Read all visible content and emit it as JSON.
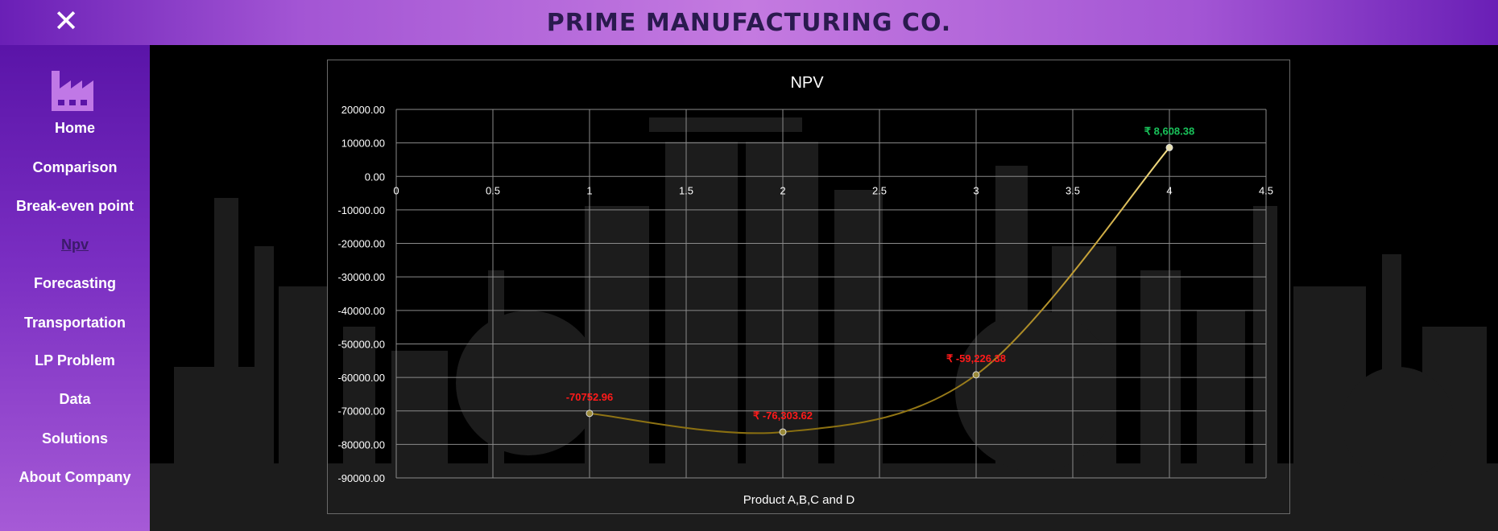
{
  "header": {
    "title": "PRIME MANUFACTURING CO.",
    "close_glyph": "✕"
  },
  "sidebar": {
    "logo_icon": "factory-icon",
    "items": [
      {
        "label": "Home",
        "active": false
      },
      {
        "label": "Comparison",
        "active": false
      },
      {
        "label": "Break-even point",
        "active": false
      },
      {
        "label": "Npv",
        "active": true
      },
      {
        "label": "Forecasting",
        "active": false
      },
      {
        "label": "Transportation",
        "active": false
      },
      {
        "label": "LP Problem",
        "active": false
      },
      {
        "label": "Data",
        "active": false
      },
      {
        "label": "Solutions",
        "active": false
      },
      {
        "label": "About Company",
        "active": false
      }
    ]
  },
  "colors": {
    "accent": "#7a2ec2",
    "title_text": "#2a1a4e",
    "line_negative": "#8a6f10",
    "line_positive": "#f5e08a",
    "label_negative": "#ff1a1a",
    "label_positive": "#19c25a"
  },
  "chart_data": {
    "type": "scatter",
    "title": "NPV",
    "xlabel": "Product A,B,C and D",
    "ylabel": "",
    "xlim": [
      0,
      4.5
    ],
    "ylim": [
      -90000,
      20000
    ],
    "x_ticks": [
      "0",
      "0.5",
      "1",
      "1.5",
      "2",
      "2.5",
      "3",
      "3.5",
      "4",
      "4.5"
    ],
    "y_ticks": [
      "20000.00",
      "10000.00",
      "0.00",
      "-10000.00",
      "-20000.00",
      "-30000.00",
      "-40000.00",
      "-50000.00",
      "-60000.00",
      "-70000.00",
      "-80000.00",
      "-90000.00"
    ],
    "grid": true,
    "smoothed": true,
    "points": [
      {
        "x": 1,
        "y": -70752.96,
        "label": "-70752.96"
      },
      {
        "x": 2,
        "y": -76303.62,
        "label": "₹ -76,303.62"
      },
      {
        "x": 3,
        "y": -59226.38,
        "label": "₹ -59,226.38"
      },
      {
        "x": 4,
        "y": 8608.38,
        "label": "₹ 8,608.38"
      }
    ]
  }
}
